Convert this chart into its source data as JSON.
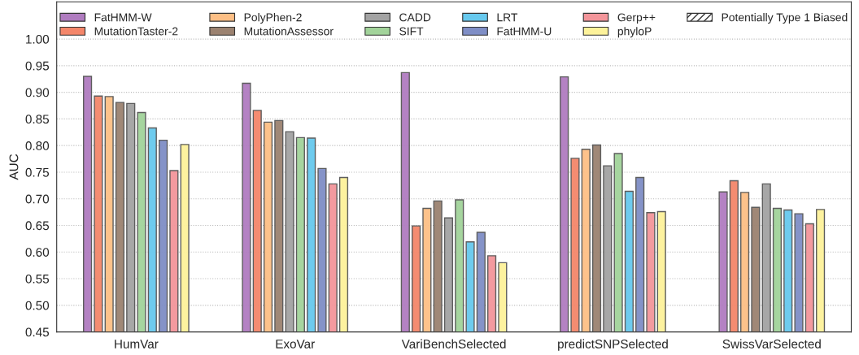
{
  "chart_data": {
    "type": "bar",
    "ylabel": "AUC",
    "categories": [
      "HumVar",
      "ExoVar",
      "VariBenchSelected",
      "predictSNPSelected",
      "SwissVarSelected"
    ],
    "series": [
      {
        "name": "FatHMM-W",
        "color": "#b07cc0",
        "values": [
          0.93,
          0.917,
          0.937,
          0.929,
          0.713
        ]
      },
      {
        "name": "MutationTaster-2",
        "color": "#f4866a",
        "values": [
          0.893,
          0.866,
          0.649,
          0.776,
          0.734
        ]
      },
      {
        "name": "PolyPhen-2",
        "color": "#fdbf85",
        "values": [
          0.892,
          0.844,
          0.682,
          0.793,
          0.712
        ]
      },
      {
        "name": "MutationAssessor",
        "color": "#9b8270",
        "values": [
          0.881,
          0.847,
          0.696,
          0.801,
          0.684
        ]
      },
      {
        "name": "CADD",
        "color": "#a3a3a3",
        "values": [
          0.879,
          0.826,
          0.664,
          0.762,
          0.728
        ]
      },
      {
        "name": "SIFT",
        "color": "#a2d39a",
        "values": [
          0.862,
          0.815,
          0.698,
          0.785,
          0.682
        ]
      },
      {
        "name": "LRT",
        "color": "#67c9ee",
        "values": [
          0.833,
          0.814,
          0.619,
          0.714,
          0.679
        ]
      },
      {
        "name": "FatHMM-U",
        "color": "#7f8ec6",
        "values": [
          0.81,
          0.757,
          0.637,
          0.74,
          0.672
        ]
      },
      {
        "name": "Gerp++",
        "color": "#f3959a",
        "values": [
          0.753,
          0.728,
          0.593,
          0.674,
          0.653
        ]
      },
      {
        "name": "phyloP",
        "color": "#fdf29a",
        "values": [
          0.802,
          0.74,
          0.58,
          0.676,
          0.68
        ]
      },
      {
        "name": "Potentially Type 1 Biased",
        "color": "#333333",
        "values": [
          null,
          null,
          null,
          null,
          null
        ]
      }
    ],
    "ylim": [
      0.45,
      1.07
    ],
    "yticks": [
      {
        "value": 0.45,
        "label": "0.45"
      },
      {
        "value": 0.5,
        "label": "0.50"
      },
      {
        "value": 0.55,
        "label": "0.55"
      },
      {
        "value": 0.6,
        "label": "0.60"
      },
      {
        "value": 0.65,
        "label": "0.65"
      },
      {
        "value": 0.7,
        "label": "0.70"
      },
      {
        "value": 0.75,
        "label": "0.75"
      },
      {
        "value": 0.8,
        "label": "0.80"
      },
      {
        "value": 0.85,
        "label": "0.85"
      },
      {
        "value": 0.9,
        "label": "0.90"
      },
      {
        "value": 0.95,
        "label": "0.95"
      },
      {
        "value": 1.0,
        "label": "1.00"
      }
    ],
    "grid": "y",
    "legend": "top"
  }
}
